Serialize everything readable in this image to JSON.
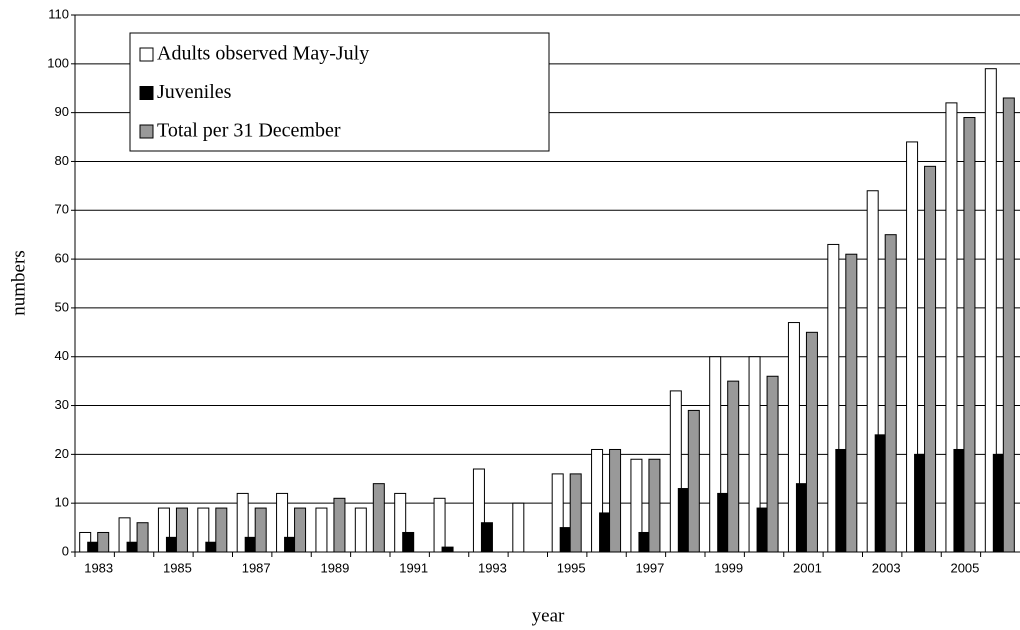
{
  "chart_data": {
    "type": "bar",
    "x_label": "year",
    "y_label": "numbers",
    "categories": [
      "1983",
      null,
      "1985",
      null,
      "1987",
      null,
      "1989",
      null,
      "1991",
      null,
      "1993",
      null,
      "1995",
      null,
      "1997",
      null,
      "1999",
      null,
      "2001",
      null,
      "2003",
      null,
      "2005",
      null
    ],
    "series": [
      {
        "name": "Adults observed May-July",
        "color": "#ffffff",
        "values": [
          4,
          7,
          9,
          9,
          12,
          12,
          9,
          9,
          12,
          11,
          17,
          10,
          16,
          21,
          19,
          33,
          40,
          40,
          47,
          63,
          74,
          84,
          92,
          99
        ]
      },
      {
        "name": "Juveniles",
        "color": "#000000",
        "values": [
          2,
          2,
          3,
          2,
          3,
          3,
          0,
          0,
          4,
          1,
          6,
          0,
          5,
          8,
          4,
          13,
          12,
          9,
          14,
          21,
          24,
          20,
          21,
          20
        ]
      },
      {
        "name": "Total per 31 December",
        "color": "#999999",
        "values": [
          4,
          6,
          9,
          9,
          9,
          9,
          11,
          14,
          0,
          0,
          0,
          0,
          16,
          21,
          19,
          29,
          35,
          36,
          45,
          61,
          65,
          79,
          89,
          93
        ]
      }
    ],
    "ylim": [
      0,
      110
    ],
    "yticks": [
      0,
      10,
      20,
      30,
      40,
      50,
      60,
      70,
      80,
      90,
      100,
      110
    ],
    "grid": true,
    "legend": "upper left"
  }
}
